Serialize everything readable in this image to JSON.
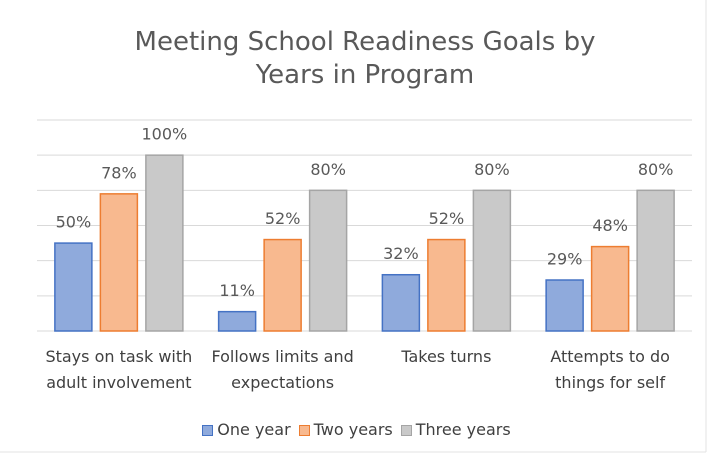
{
  "chart_data": {
    "type": "bar",
    "title": "Meeting School Readiness Goals by Years in Program",
    "categories": [
      "Stays on task with adult involvement",
      "Follows limits and expectations",
      "Takes turns",
      "Attempts to do things for self"
    ],
    "series": [
      {
        "name": "One year",
        "color": "#8faadc",
        "edgecolor": "#4472c4",
        "values": [
          50,
          11,
          32,
          29
        ],
        "value_labels": [
          "50%",
          "11%",
          "32%",
          "29%"
        ]
      },
      {
        "name": "Two years",
        "color": "#f8b98f",
        "edgecolor": "#ed7d31",
        "values": [
          78,
          52,
          52,
          48
        ],
        "value_labels": [
          "78%",
          "52%",
          "52%",
          "48%"
        ]
      },
      {
        "name": "Three years",
        "color": "#c9c9c9",
        "edgecolor": "#a5a5a5",
        "values": [
          100,
          80,
          80,
          80
        ],
        "value_labels": [
          "100%",
          "80%",
          "80%",
          "80%"
        ]
      }
    ],
    "ylim": [
      0,
      120
    ],
    "yticks": [
      0,
      20,
      40,
      60,
      80,
      100,
      120
    ],
    "grid": true,
    "legend": "bottom"
  }
}
